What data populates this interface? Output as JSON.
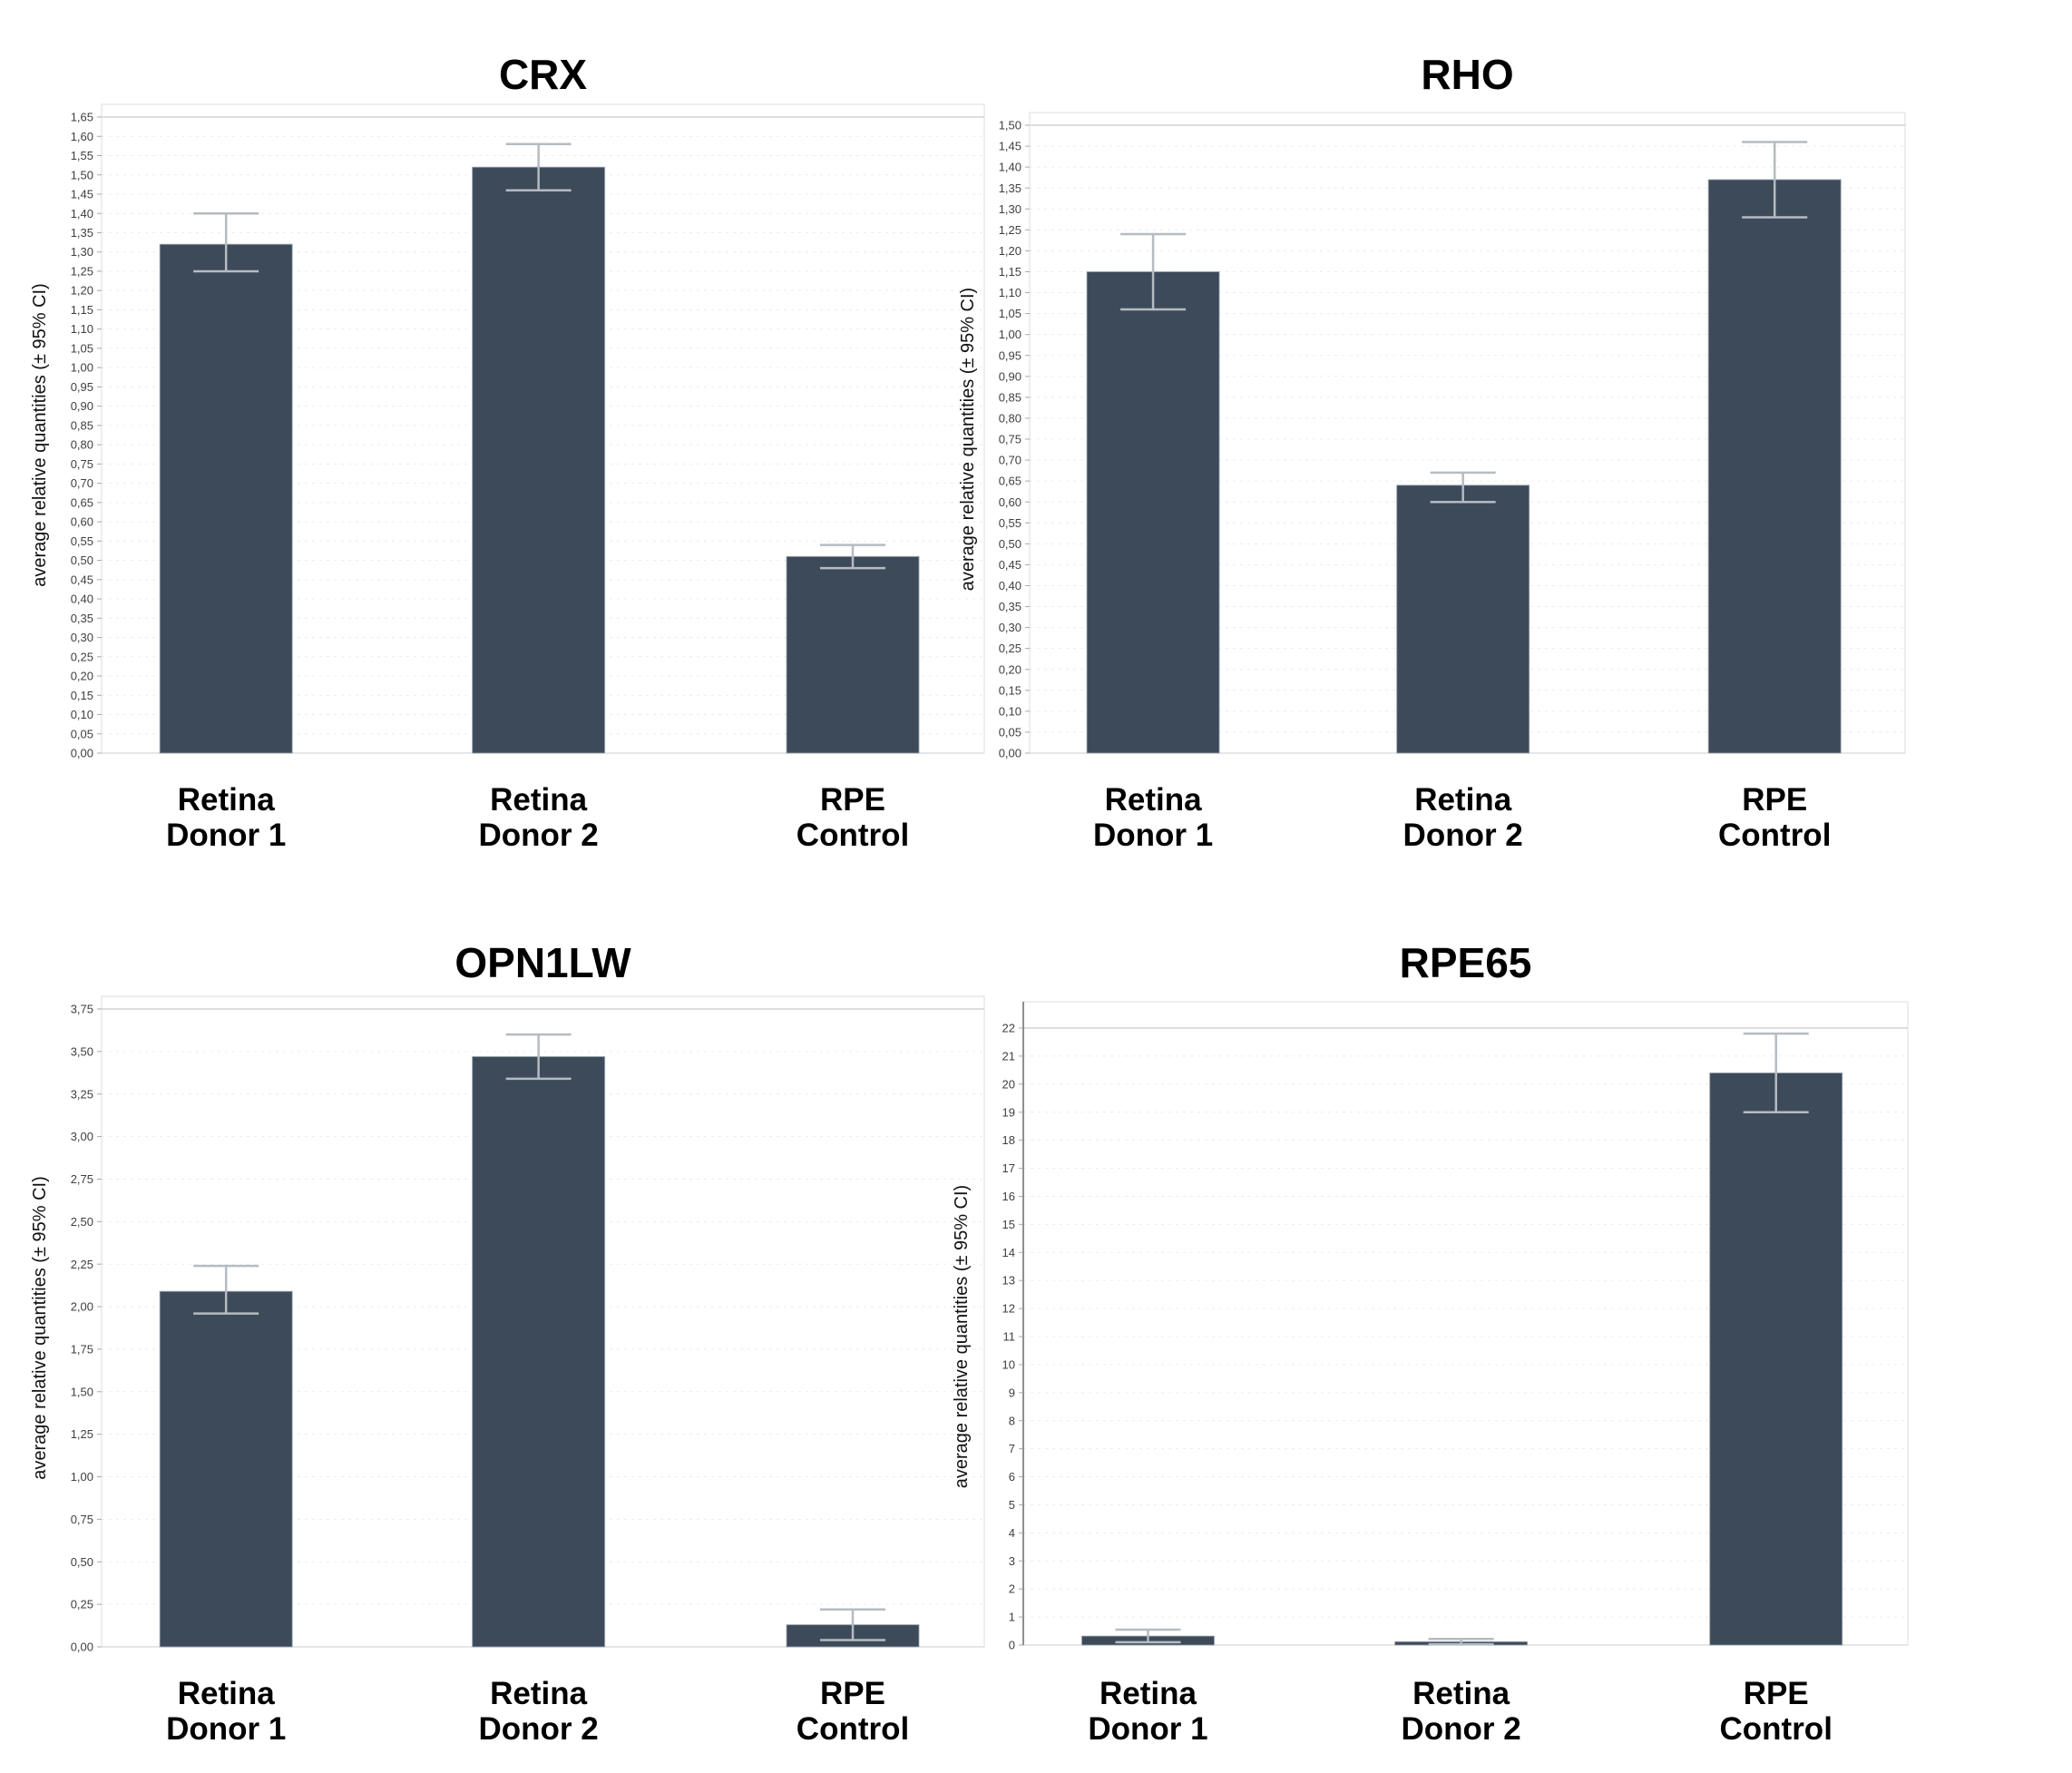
{
  "figure": {
    "background": "#ffffff"
  },
  "colors": {
    "bar": "#3d4a59",
    "bar_edge": "#9aa5b0",
    "error_bar": "#b5bbc2",
    "grid_line": "#ececec",
    "grid_line_top": "#d4d4d4",
    "baseline": "#d9d9d9",
    "plot_border": "#e3e3e3",
    "axis_line": "#8f8f8f",
    "tick_text": "#3f3f3f",
    "label_text": "#000000"
  },
  "chart_data": {
    "type": "bar",
    "ylabel": "average relative quantities (± 95% CI)",
    "legend": "none",
    "grid": "horizontal-dashed",
    "charts": [
      {
        "id": "crx",
        "title": "CRX",
        "categories": [
          [
            "Retina",
            "Donor 1"
          ],
          [
            "Retina",
            "Donor 2"
          ],
          [
            "RPE",
            "Control"
          ]
        ],
        "values": [
          1.32,
          1.52,
          0.51
        ],
        "ci_low": [
          1.25,
          1.46,
          0.48
        ],
        "ci_high": [
          1.4,
          1.58,
          0.54
        ],
        "ylim": [
          0,
          1.65
        ],
        "ystep": 0.05,
        "tick_decimals": 2,
        "decimal_comma": true
      },
      {
        "id": "rho",
        "title": "RHO",
        "categories": [
          [
            "Retina",
            "Donor 1"
          ],
          [
            "Retina",
            "Donor 2"
          ],
          [
            "RPE",
            "Control"
          ]
        ],
        "values": [
          1.15,
          0.64,
          1.37
        ],
        "ci_low": [
          1.06,
          0.6,
          1.28
        ],
        "ci_high": [
          1.24,
          0.67,
          1.46
        ],
        "ylim": [
          0,
          1.5
        ],
        "ystep": 0.05,
        "tick_decimals": 2,
        "decimal_comma": true
      },
      {
        "id": "opn1lw",
        "title": "OPN1LW",
        "categories": [
          [
            "Retina",
            "Donor 1"
          ],
          [
            "Retina",
            "Donor 2"
          ],
          [
            "RPE",
            "Control"
          ]
        ],
        "values": [
          2.09,
          3.47,
          0.13
        ],
        "ci_low": [
          1.96,
          3.34,
          0.04
        ],
        "ci_high": [
          2.24,
          3.6,
          0.22
        ],
        "ylim": [
          0,
          3.75
        ],
        "ystep": 0.25,
        "tick_decimals": 2,
        "decimal_comma": true
      },
      {
        "id": "rpe65",
        "title": "RPE65",
        "categories": [
          [
            "Retina",
            "Donor 1"
          ],
          [
            "Retina",
            "Donor 2"
          ],
          [
            "RPE",
            "Control"
          ]
        ],
        "values": [
          0.32,
          0.12,
          20.4
        ],
        "ci_low": [
          0.1,
          0.03,
          19.0
        ],
        "ci_high": [
          0.55,
          0.22,
          21.8
        ],
        "ylim": [
          0,
          22
        ],
        "ystep": 1,
        "tick_decimals": 0,
        "decimal_comma": false
      }
    ]
  }
}
